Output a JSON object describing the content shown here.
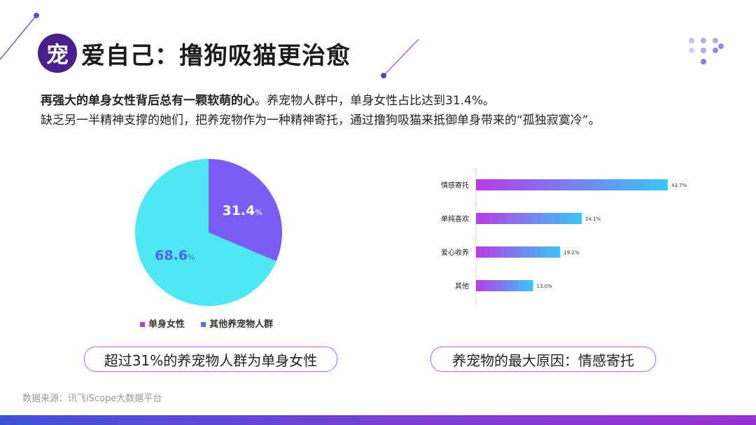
{
  "title": {
    "badge": "宠",
    "text": "爱自己：撸狗吸猫更治愈"
  },
  "subtitle": {
    "bold": "再强大的单身女性背后总有一颗软萌的心",
    "line1_rest": "。养宠物人群中，单身女性占比达到31.4%。",
    "line2": "缺乏另一半精神支撑的她们，把养宠物作为一种精神寄托，通过撸狗吸猫来抵御单身带来的“孤独寂寞冷”。"
  },
  "colors": {
    "accent": "#4a1e8c",
    "pie_single": "#7b5cf5",
    "pie_other": "#4de8f4",
    "bar_start": "#b93be6",
    "bar_end": "#39c6f6",
    "pill_border": "#b57be0"
  },
  "chart_data": [
    {
      "type": "pie",
      "slices": [
        {
          "name": "单身女性",
          "value": 31.4,
          "label": "31.4",
          "unit": "%"
        },
        {
          "name": "其他养宠物人群",
          "value": 68.6,
          "label": "68.6",
          "unit": "%"
        }
      ],
      "legend": [
        "单身女性",
        "其他养宠物人群"
      ],
      "legend_position": "bottom"
    },
    {
      "type": "bar",
      "orientation": "horizontal",
      "categories": [
        "情感寄托",
        "单纯喜欢",
        "爱心收养",
        "其他"
      ],
      "values": [
        43.7,
        24.1,
        19.2,
        13.0
      ],
      "value_labels": [
        "43.7%",
        "24.1%",
        "19.2%",
        "13.0%"
      ]
    }
  ],
  "callouts": {
    "left": "超过31%的养宠物人群为单身女性",
    "right": "养宠物的最大原因：情感寄托"
  },
  "source": "数据来源：讯飞iScope大数据平台"
}
